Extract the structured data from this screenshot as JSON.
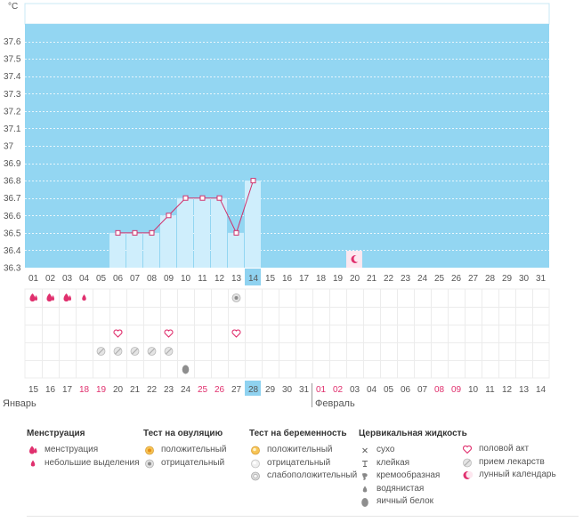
{
  "unit_label": "°C",
  "month_labels": {
    "first": "Январь",
    "second": "Февраль"
  },
  "colors": {
    "plot_bg": "#93d6f2",
    "bar_fill": "#cfeefc",
    "line": "#d0306b",
    "today": "#8fd2f0",
    "weekend": "#e0306e",
    "grid": "#ececec",
    "text": "#555555"
  },
  "chart_data": {
    "type": "line",
    "title": "",
    "ylabel": "°C",
    "ylim": [
      36.3,
      37.6
    ],
    "y_ticks": [
      "36.3",
      "36.4",
      "36.5",
      "36.6",
      "36.7",
      "36.8",
      "36.9",
      "37",
      "37.1",
      "37.2",
      "37.3",
      "37.4",
      "37.5",
      "37.6"
    ],
    "cycle_days": [
      "01",
      "02",
      "03",
      "04",
      "05",
      "06",
      "07",
      "08",
      "09",
      "10",
      "11",
      "12",
      "13",
      "14",
      "15",
      "16",
      "17",
      "18",
      "19",
      "20",
      "21",
      "22",
      "23",
      "24",
      "25",
      "26",
      "27",
      "28",
      "29",
      "30",
      "31"
    ],
    "dates": [
      {
        "label": "15",
        "weekend": false
      },
      {
        "label": "16",
        "weekend": false
      },
      {
        "label": "17",
        "weekend": false
      },
      {
        "label": "18",
        "weekend": true
      },
      {
        "label": "19",
        "weekend": true
      },
      {
        "label": "20",
        "weekend": false
      },
      {
        "label": "21",
        "weekend": false
      },
      {
        "label": "22",
        "weekend": false
      },
      {
        "label": "23",
        "weekend": false
      },
      {
        "label": "24",
        "weekend": false
      },
      {
        "label": "25",
        "weekend": true
      },
      {
        "label": "26",
        "weekend": true
      },
      {
        "label": "27",
        "weekend": false
      },
      {
        "label": "28",
        "weekend": false
      },
      {
        "label": "29",
        "weekend": false
      },
      {
        "label": "30",
        "weekend": false
      },
      {
        "label": "31",
        "weekend": false
      },
      {
        "label": "01",
        "weekend": true
      },
      {
        "label": "02",
        "weekend": true
      },
      {
        "label": "03",
        "weekend": false
      },
      {
        "label": "04",
        "weekend": false
      },
      {
        "label": "05",
        "weekend": false
      },
      {
        "label": "06",
        "weekend": false
      },
      {
        "label": "07",
        "weekend": false
      },
      {
        "label": "08",
        "weekend": true
      },
      {
        "label": "09",
        "weekend": true
      },
      {
        "label": "10",
        "weekend": false
      },
      {
        "label": "11",
        "weekend": false
      },
      {
        "label": "12",
        "weekend": false
      },
      {
        "label": "13",
        "weekend": false
      },
      {
        "label": "14",
        "weekend": false
      }
    ],
    "today_day": 14,
    "series": [
      {
        "name": "basal-temperature",
        "points": [
          {
            "day": 6,
            "value": 36.5
          },
          {
            "day": 7,
            "value": 36.5
          },
          {
            "day": 8,
            "value": 36.5
          },
          {
            "day": 9,
            "value": 36.6
          },
          {
            "day": 10,
            "value": 36.7
          },
          {
            "day": 11,
            "value": 36.7
          },
          {
            "day": 12,
            "value": 36.7
          },
          {
            "day": 13,
            "value": 36.5
          },
          {
            "day": 14,
            "value": 36.8
          }
        ]
      }
    ],
    "moon_day": 20,
    "marker_rows": [
      {
        "name": "menstruation",
        "items": [
          {
            "day": 1,
            "icon": "menstruation-icon"
          },
          {
            "day": 2,
            "icon": "menstruation-icon"
          },
          {
            "day": 3,
            "icon": "menstruation-icon"
          },
          {
            "day": 4,
            "icon": "spotting-icon"
          },
          {
            "day": 13,
            "icon": "ovulation-negative-icon"
          }
        ]
      },
      {
        "name": "empty",
        "items": []
      },
      {
        "name": "intercourse",
        "items": [
          {
            "day": 6,
            "icon": "heart-icon"
          },
          {
            "day": 9,
            "icon": "heart-icon"
          },
          {
            "day": 13,
            "icon": "heart-icon"
          }
        ]
      },
      {
        "name": "medication",
        "items": [
          {
            "day": 5,
            "icon": "pill-icon"
          },
          {
            "day": 6,
            "icon": "pill-icon"
          },
          {
            "day": 7,
            "icon": "pill-icon"
          },
          {
            "day": 8,
            "icon": "pill-icon"
          },
          {
            "day": 9,
            "icon": "pill-icon"
          }
        ]
      },
      {
        "name": "cervical",
        "items": [
          {
            "day": 10,
            "icon": "egg-white-icon"
          }
        ]
      }
    ]
  },
  "legend": {
    "menstruation": {
      "title": "Менструация",
      "items": [
        {
          "label": "менструация",
          "icon": "menstruation-icon"
        },
        {
          "label": "небольшие выделения",
          "icon": "spotting-icon"
        }
      ]
    },
    "ovulation": {
      "title": "Тест на овуляцию",
      "items": [
        {
          "label": "положительный",
          "icon": "ovulation-positive-icon"
        },
        {
          "label": "отрицательный",
          "icon": "ovulation-negative-icon"
        }
      ]
    },
    "pregnancy": {
      "title": "Тест на беременность",
      "items": [
        {
          "label": "положительный",
          "icon": "pregnancy-positive-icon"
        },
        {
          "label": "отрицательный",
          "icon": "pregnancy-negative-icon"
        },
        {
          "label": "слабоположительный",
          "icon": "pregnancy-weak-icon"
        }
      ]
    },
    "cervical": {
      "title": "Цервикальная жидкость",
      "items": [
        {
          "label": "сухо",
          "icon": "dry-icon"
        },
        {
          "label": "клейкая",
          "icon": "sticky-icon"
        },
        {
          "label": "кремообразная",
          "icon": "creamy-icon"
        },
        {
          "label": "водянистая",
          "icon": "watery-icon"
        },
        {
          "label": "яичный белок",
          "icon": "egg-white-icon"
        }
      ]
    },
    "other": {
      "items": [
        {
          "label": "половой акт",
          "icon": "heart-icon"
        },
        {
          "label": "прием лекарств",
          "icon": "pill-icon"
        },
        {
          "label": "лунный календарь",
          "icon": "moon-icon"
        }
      ]
    }
  }
}
